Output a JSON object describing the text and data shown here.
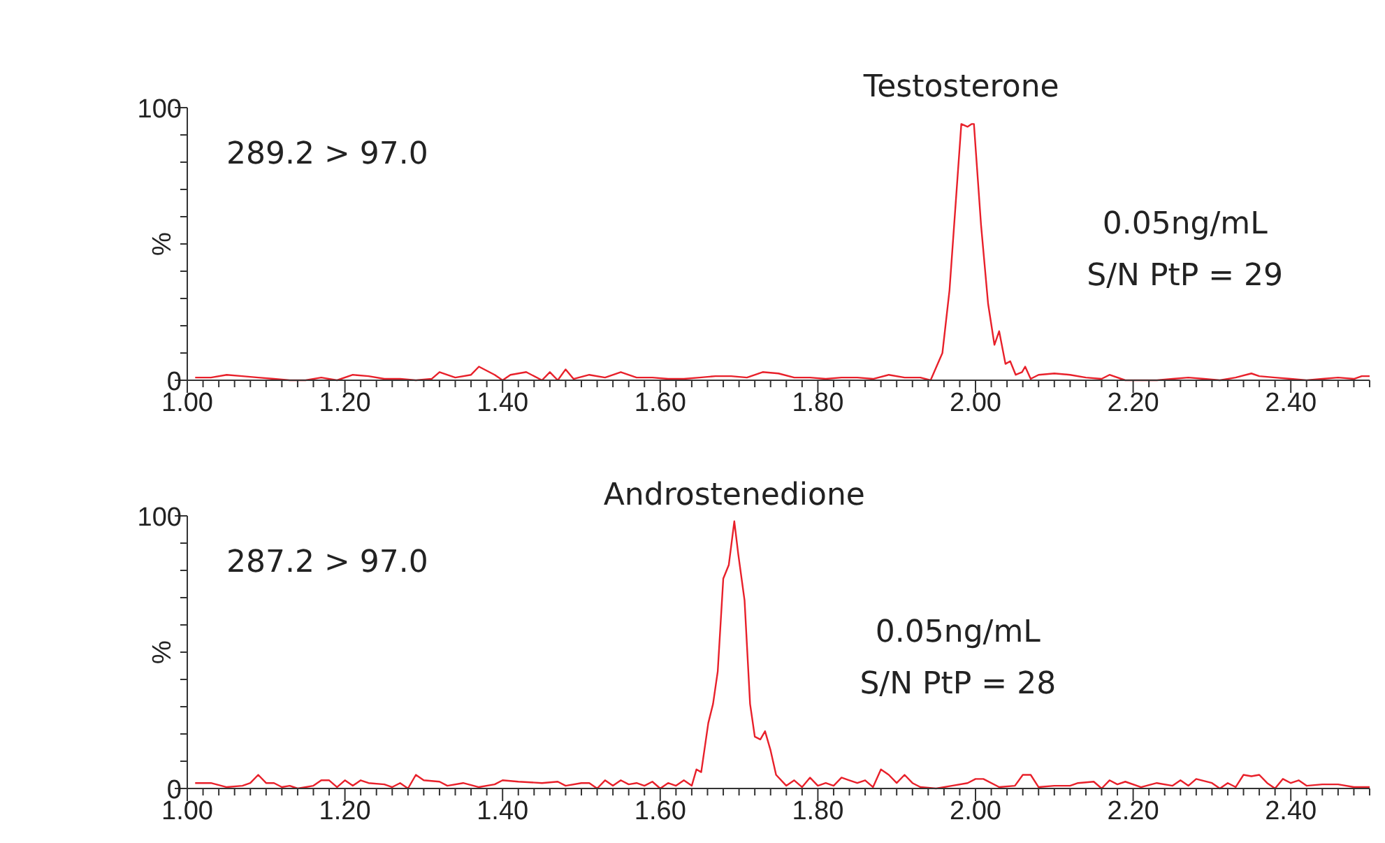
{
  "chart_data": [
    {
      "type": "line",
      "title": "Testosterone",
      "ylabel": "%",
      "annotations": [
        "289.2 > 97.0",
        "0.05ng/mL",
        "S/N PtP = 29"
      ],
      "xlim": [
        1.0,
        2.5
      ],
      "ylim": [
        0,
        100
      ],
      "xticks": [
        {
          "value": 1.0,
          "label": "1.00"
        },
        {
          "value": 1.02,
          "label": null
        },
        {
          "value": 1.04,
          "label": null
        },
        {
          "value": 1.06,
          "label": null
        },
        {
          "value": 1.08,
          "label": null
        },
        {
          "value": 1.1,
          "label": null
        },
        {
          "value": 1.12,
          "label": null
        },
        {
          "value": 1.14,
          "label": null
        },
        {
          "value": 1.16,
          "label": null
        },
        {
          "value": 1.18,
          "label": null
        },
        {
          "value": 1.2,
          "label": "1.20"
        },
        {
          "value": 1.22,
          "label": null
        },
        {
          "value": 1.24,
          "label": null
        },
        {
          "value": 1.26,
          "label": null
        },
        {
          "value": 1.28,
          "label": null
        },
        {
          "value": 1.3,
          "label": null
        },
        {
          "value": 1.32,
          "label": null
        },
        {
          "value": 1.34,
          "label": null
        },
        {
          "value": 1.36,
          "label": null
        },
        {
          "value": 1.38,
          "label": null
        },
        {
          "value": 1.4,
          "label": "1.40"
        },
        {
          "value": 1.42,
          "label": null
        },
        {
          "value": 1.44,
          "label": null
        },
        {
          "value": 1.46,
          "label": null
        },
        {
          "value": 1.48,
          "label": null
        },
        {
          "value": 1.5,
          "label": null
        },
        {
          "value": 1.52,
          "label": null
        },
        {
          "value": 1.54,
          "label": null
        },
        {
          "value": 1.56,
          "label": null
        },
        {
          "value": 1.58,
          "label": null
        },
        {
          "value": 1.6,
          "label": "1.60"
        },
        {
          "value": 1.62,
          "label": null
        },
        {
          "value": 1.64,
          "label": null
        },
        {
          "value": 1.66,
          "label": null
        },
        {
          "value": 1.68,
          "label": null
        },
        {
          "value": 1.7,
          "label": null
        },
        {
          "value": 1.72,
          "label": null
        },
        {
          "value": 1.74,
          "label": null
        },
        {
          "value": 1.76,
          "label": null
        },
        {
          "value": 1.78,
          "label": null
        },
        {
          "value": 1.8,
          "label": "1.80"
        },
        {
          "value": 1.82,
          "label": null
        },
        {
          "value": 1.84,
          "label": null
        },
        {
          "value": 1.86,
          "label": null
        },
        {
          "value": 1.88,
          "label": null
        },
        {
          "value": 1.9,
          "label": null
        },
        {
          "value": 1.92,
          "label": null
        },
        {
          "value": 1.94,
          "label": null
        },
        {
          "value": 1.96,
          "label": null
        },
        {
          "value": 1.98,
          "label": null
        },
        {
          "value": 2.0,
          "label": "2.00"
        },
        {
          "value": 2.02,
          "label": null
        },
        {
          "value": 2.04,
          "label": null
        },
        {
          "value": 2.06,
          "label": null
        },
        {
          "value": 2.08,
          "label": null
        },
        {
          "value": 2.1,
          "label": null
        },
        {
          "value": 2.12,
          "label": null
        },
        {
          "value": 2.14,
          "label": null
        },
        {
          "value": 2.16,
          "label": null
        },
        {
          "value": 2.18,
          "label": null
        },
        {
          "value": 2.2,
          "label": "2.20"
        },
        {
          "value": 2.22,
          "label": null
        },
        {
          "value": 2.24,
          "label": null
        },
        {
          "value": 2.26,
          "label": null
        },
        {
          "value": 2.28,
          "label": null
        },
        {
          "value": 2.3,
          "label": null
        },
        {
          "value": 2.32,
          "label": null
        },
        {
          "value": 2.34,
          "label": null
        },
        {
          "value": 2.36,
          "label": null
        },
        {
          "value": 2.38,
          "label": null
        },
        {
          "value": 2.4,
          "label": "2.40"
        },
        {
          "value": 2.42,
          "label": null
        },
        {
          "value": 2.44,
          "label": null
        },
        {
          "value": 2.46,
          "label": null
        },
        {
          "value": 2.48,
          "label": null
        },
        {
          "value": 2.5,
          "label": null
        }
      ],
      "yticks": [
        {
          "value": 0,
          "label": "0"
        },
        {
          "value": 10,
          "label": null
        },
        {
          "value": 20,
          "label": null
        },
        {
          "value": 30,
          "label": null
        },
        {
          "value": 40,
          "label": null
        },
        {
          "value": 50,
          "label": null
        },
        {
          "value": 60,
          "label": null
        },
        {
          "value": 70,
          "label": null
        },
        {
          "value": 80,
          "label": null
        },
        {
          "value": 90,
          "label": null
        },
        {
          "value": 100,
          "label": "100"
        }
      ],
      "series": [
        {
          "color": "#e8202a",
          "x": [
            1.01,
            1.03,
            1.05,
            1.07,
            1.09,
            1.11,
            1.13,
            1.15,
            1.17,
            1.19,
            1.21,
            1.23,
            1.25,
            1.27,
            1.29,
            1.31,
            1.32,
            1.34,
            1.36,
            1.37,
            1.39,
            1.4,
            1.41,
            1.43,
            1.45,
            1.46,
            1.47,
            1.48,
            1.49,
            1.51,
            1.53,
            1.55,
            1.57,
            1.59,
            1.61,
            1.63,
            1.65,
            1.67,
            1.69,
            1.71,
            1.73,
            1.75,
            1.77,
            1.79,
            1.81,
            1.83,
            1.85,
            1.87,
            1.89,
            1.91,
            1.93,
            1.943,
            1.958,
            1.967,
            1.982,
            1.99,
            1.995,
            1.998,
            2.007,
            2.016,
            2.024,
            2.03,
            2.038,
            2.044,
            2.051,
            2.059,
            2.063,
            2.07,
            2.08,
            2.1,
            2.12,
            2.14,
            2.16,
            2.17,
            2.19,
            2.21,
            2.23,
            2.25,
            2.27,
            2.29,
            2.31,
            2.33,
            2.35,
            2.36,
            2.38,
            2.4,
            2.42,
            2.44,
            2.46,
            2.48,
            2.49,
            2.5
          ],
          "values": [
            1,
            1,
            2,
            1.5,
            1,
            0.5,
            0,
            0,
            1,
            0,
            2,
            1.5,
            0.5,
            0.5,
            0,
            0.5,
            3,
            1,
            2,
            5,
            2,
            0,
            2,
            3,
            0,
            3,
            0,
            4,
            0.5,
            2,
            1,
            3,
            1,
            1,
            0.5,
            0.5,
            1,
            1.5,
            1.5,
            1,
            3,
            2.5,
            1,
            1,
            0.5,
            1,
            1,
            0.5,
            2,
            1,
            1,
            0,
            10,
            33,
            94,
            93,
            94,
            94,
            57,
            28,
            13,
            18,
            6,
            7,
            2,
            3,
            5,
            0.5,
            2,
            2.5,
            2,
            1,
            0.5,
            2,
            0,
            0,
            0,
            0.5,
            1,
            0.5,
            0,
            1,
            2.5,
            1.5,
            1,
            0.5,
            0,
            0.5,
            1,
            0.5,
            1.5,
            1.5
          ]
        }
      ]
    },
    {
      "type": "line",
      "title": "Androstenedione",
      "ylabel": "%",
      "annotations": [
        "287.2 > 97.0",
        "0.05ng/mL",
        "S/N PtP = 28"
      ],
      "xlim": [
        1.0,
        2.5
      ],
      "ylim": [
        0,
        100
      ],
      "xticks": [
        {
          "value": 1.0,
          "label": "1.00"
        },
        {
          "value": 1.02,
          "label": null
        },
        {
          "value": 1.04,
          "label": null
        },
        {
          "value": 1.06,
          "label": null
        },
        {
          "value": 1.08,
          "label": null
        },
        {
          "value": 1.1,
          "label": null
        },
        {
          "value": 1.12,
          "label": null
        },
        {
          "value": 1.14,
          "label": null
        },
        {
          "value": 1.16,
          "label": null
        },
        {
          "value": 1.18,
          "label": null
        },
        {
          "value": 1.2,
          "label": "1.20"
        },
        {
          "value": 1.22,
          "label": null
        },
        {
          "value": 1.24,
          "label": null
        },
        {
          "value": 1.26,
          "label": null
        },
        {
          "value": 1.28,
          "label": null
        },
        {
          "value": 1.3,
          "label": null
        },
        {
          "value": 1.32,
          "label": null
        },
        {
          "value": 1.34,
          "label": null
        },
        {
          "value": 1.36,
          "label": null
        },
        {
          "value": 1.38,
          "label": null
        },
        {
          "value": 1.4,
          "label": "1.40"
        },
        {
          "value": 1.42,
          "label": null
        },
        {
          "value": 1.44,
          "label": null
        },
        {
          "value": 1.46,
          "label": null
        },
        {
          "value": 1.48,
          "label": null
        },
        {
          "value": 1.5,
          "label": null
        },
        {
          "value": 1.52,
          "label": null
        },
        {
          "value": 1.54,
          "label": null
        },
        {
          "value": 1.56,
          "label": null
        },
        {
          "value": 1.58,
          "label": null
        },
        {
          "value": 1.6,
          "label": "1.60"
        },
        {
          "value": 1.62,
          "label": null
        },
        {
          "value": 1.64,
          "label": null
        },
        {
          "value": 1.66,
          "label": null
        },
        {
          "value": 1.68,
          "label": null
        },
        {
          "value": 1.7,
          "label": null
        },
        {
          "value": 1.72,
          "label": null
        },
        {
          "value": 1.74,
          "label": null
        },
        {
          "value": 1.76,
          "label": null
        },
        {
          "value": 1.78,
          "label": null
        },
        {
          "value": 1.8,
          "label": "1.80"
        },
        {
          "value": 1.82,
          "label": null
        },
        {
          "value": 1.84,
          "label": null
        },
        {
          "value": 1.86,
          "label": null
        },
        {
          "value": 1.88,
          "label": null
        },
        {
          "value": 1.9,
          "label": null
        },
        {
          "value": 1.92,
          "label": null
        },
        {
          "value": 1.94,
          "label": null
        },
        {
          "value": 1.96,
          "label": null
        },
        {
          "value": 1.98,
          "label": null
        },
        {
          "value": 2.0,
          "label": "2.00"
        },
        {
          "value": 2.02,
          "label": null
        },
        {
          "value": 2.04,
          "label": null
        },
        {
          "value": 2.06,
          "label": null
        },
        {
          "value": 2.08,
          "label": null
        },
        {
          "value": 2.1,
          "label": null
        },
        {
          "value": 2.12,
          "label": null
        },
        {
          "value": 2.14,
          "label": null
        },
        {
          "value": 2.16,
          "label": null
        },
        {
          "value": 2.18,
          "label": null
        },
        {
          "value": 2.2,
          "label": "2.20"
        },
        {
          "value": 2.22,
          "label": null
        },
        {
          "value": 2.24,
          "label": null
        },
        {
          "value": 2.26,
          "label": null
        },
        {
          "value": 2.28,
          "label": null
        },
        {
          "value": 2.3,
          "label": null
        },
        {
          "value": 2.32,
          "label": null
        },
        {
          "value": 2.34,
          "label": null
        },
        {
          "value": 2.36,
          "label": null
        },
        {
          "value": 2.38,
          "label": null
        },
        {
          "value": 2.4,
          "label": "2.40"
        },
        {
          "value": 2.42,
          "label": null
        },
        {
          "value": 2.44,
          "label": null
        },
        {
          "value": 2.46,
          "label": null
        },
        {
          "value": 2.48,
          "label": null
        },
        {
          "value": 2.5,
          "label": null
        }
      ],
      "yticks": [
        {
          "value": 0,
          "label": "0"
        },
        {
          "value": 10,
          "label": null
        },
        {
          "value": 20,
          "label": null
        },
        {
          "value": 30,
          "label": null
        },
        {
          "value": 40,
          "label": null
        },
        {
          "value": 50,
          "label": null
        },
        {
          "value": 60,
          "label": null
        },
        {
          "value": 70,
          "label": null
        },
        {
          "value": 80,
          "label": null
        },
        {
          "value": 90,
          "label": null
        },
        {
          "value": 100,
          "label": "100"
        }
      ],
      "series": [
        {
          "color": "#e8202a",
          "x": [
            1.01,
            1.03,
            1.05,
            1.07,
            1.08,
            1.09,
            1.1,
            1.11,
            1.12,
            1.13,
            1.14,
            1.16,
            1.17,
            1.18,
            1.19,
            1.2,
            1.21,
            1.22,
            1.23,
            1.25,
            1.26,
            1.27,
            1.28,
            1.29,
            1.3,
            1.32,
            1.33,
            1.35,
            1.37,
            1.39,
            1.4,
            1.42,
            1.45,
            1.47,
            1.48,
            1.5,
            1.51,
            1.52,
            1.53,
            1.54,
            1.55,
            1.56,
            1.57,
            1.58,
            1.59,
            1.6,
            1.61,
            1.62,
            1.63,
            1.64,
            1.646,
            1.652,
            1.661,
            1.667,
            1.673,
            1.68,
            1.687,
            1.694,
            1.699,
            1.707,
            1.714,
            1.72,
            1.727,
            1.733,
            1.74,
            1.747,
            1.76,
            1.77,
            1.78,
            1.79,
            1.8,
            1.81,
            1.82,
            1.83,
            1.84,
            1.85,
            1.86,
            1.87,
            1.88,
            1.89,
            1.9,
            1.91,
            1.92,
            1.93,
            1.95,
            1.97,
            1.99,
            2.0,
            2.01,
            2.03,
            2.05,
            2.06,
            2.07,
            2.08,
            2.1,
            2.12,
            2.13,
            2.15,
            2.16,
            2.17,
            2.18,
            2.19,
            2.21,
            2.23,
            2.25,
            2.26,
            2.27,
            2.28,
            2.3,
            2.31,
            2.32,
            2.33,
            2.34,
            2.35,
            2.36,
            2.37,
            2.38,
            2.39,
            2.4,
            2.41,
            2.42,
            2.44,
            2.46,
            2.48,
            2.5
          ],
          "values": [
            2,
            2,
            0.5,
            1,
            2,
            5,
            2,
            2,
            0.5,
            1,
            0,
            1,
            3,
            3,
            0.5,
            3,
            1,
            3,
            2,
            1.5,
            0.5,
            2,
            0,
            5,
            3,
            2.5,
            1,
            2,
            0.5,
            1.5,
            3,
            2.5,
            2,
            2.5,
            1,
            2,
            2,
            0,
            3,
            1,
            3,
            1.5,
            2,
            1,
            2.5,
            0,
            2,
            1,
            3,
            1,
            7,
            6,
            24,
            31,
            43,
            77,
            82,
            98,
            86,
            69,
            31,
            19,
            18,
            21,
            14,
            5,
            1,
            3,
            0.5,
            4,
            1,
            2,
            1,
            4,
            3,
            2,
            3,
            0.5,
            7,
            5,
            2,
            5,
            2,
            0.5,
            0,
            1,
            2,
            3.5,
            3.5,
            0.5,
            1,
            5,
            5,
            0.5,
            1,
            1,
            2,
            2.5,
            0,
            3,
            1.5,
            2.5,
            0.5,
            2,
            1,
            3,
            1,
            3.5,
            2,
            0,
            2,
            0.5,
            5,
            4.5,
            5,
            2,
            0,
            3.5,
            2,
            3,
            1,
            1.5,
            1.5,
            0.5,
            0.5
          ]
        }
      ]
    }
  ]
}
